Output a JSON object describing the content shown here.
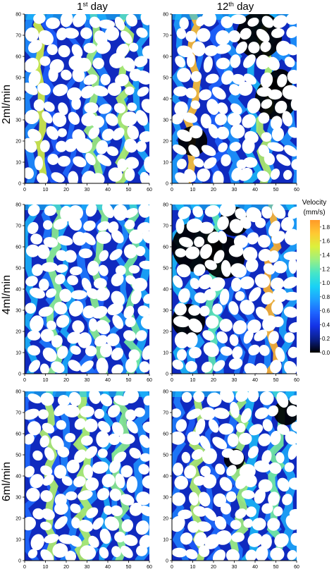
{
  "chart_data": {
    "type": "heatmap",
    "columns": [
      {
        "label": "1",
        "sup": "st",
        "suffix": " day"
      },
      {
        "label": "12",
        "sup": "th",
        "suffix": " day"
      }
    ],
    "rows": [
      {
        "label": "2ml/min"
      },
      {
        "label": "4ml/min"
      },
      {
        "label": "6ml/min"
      }
    ],
    "x_ticks": [
      "0",
      "10",
      "20",
      "30",
      "40",
      "50",
      "60"
    ],
    "y_ticks": [
      "0",
      "10",
      "20",
      "30",
      "40",
      "50",
      "60",
      "70",
      "80"
    ],
    "xlim": [
      0,
      60
    ],
    "ylim": [
      0,
      80
    ],
    "colorbar": {
      "title_line1": "Velocity",
      "title_line2": "(mm/s)",
      "ticks": [
        "1.8",
        "1.6",
        "1.4",
        "1.2",
        "1.0",
        "0.8",
        "0.6",
        "0.4",
        "0.2",
        "0.0"
      ],
      "range": [
        0,
        1.9
      ],
      "colors": [
        "#000000",
        "#0a1f8a",
        "#1432e6",
        "#1e64ff",
        "#1ea0ff",
        "#19d2f5",
        "#46e6c8",
        "#9bf082",
        "#dcf03c",
        "#ffc832",
        "#ff9a28"
      ]
    },
    "panels": [
      {
        "row": 0,
        "col": 0,
        "seed": 11,
        "hot": [
          [
            8,
            0.7
          ],
          [
            33,
            0.55
          ],
          [
            48,
            0.6
          ]
        ],
        "dead": []
      },
      {
        "row": 0,
        "col": 1,
        "seed": 23,
        "hot": [
          [
            10,
            0.95
          ],
          [
            45,
            0.6
          ]
        ],
        "dead": [
          [
            42,
            70,
            11
          ],
          [
            50,
            40,
            10
          ],
          [
            10,
            20,
            7
          ],
          [
            52,
            48,
            6
          ]
        ]
      },
      {
        "row": 1,
        "col": 0,
        "seed": 37,
        "hot": [
          [
            15,
            0.5
          ],
          [
            36,
            0.5
          ],
          [
            52,
            0.45
          ]
        ],
        "dead": []
      },
      {
        "row": 1,
        "col": 1,
        "seed": 41,
        "hot": [
          [
            48,
            1.0
          ],
          [
            20,
            0.4
          ]
        ],
        "dead": [
          [
            12,
            60,
            12
          ],
          [
            25,
            55,
            10
          ],
          [
            8,
            25,
            8
          ],
          [
            30,
            72,
            7
          ]
        ]
      },
      {
        "row": 2,
        "col": 0,
        "seed": 53,
        "hot": [
          [
            12,
            0.6
          ],
          [
            28,
            0.6
          ],
          [
            46,
            0.5
          ]
        ],
        "dead": []
      },
      {
        "row": 2,
        "col": 1,
        "seed": 67,
        "hot": [
          [
            13,
            0.6
          ],
          [
            32,
            0.55
          ],
          [
            50,
            0.45
          ]
        ],
        "dead": [
          [
            55,
            70,
            6
          ],
          [
            30,
            48,
            5
          ]
        ]
      }
    ]
  }
}
